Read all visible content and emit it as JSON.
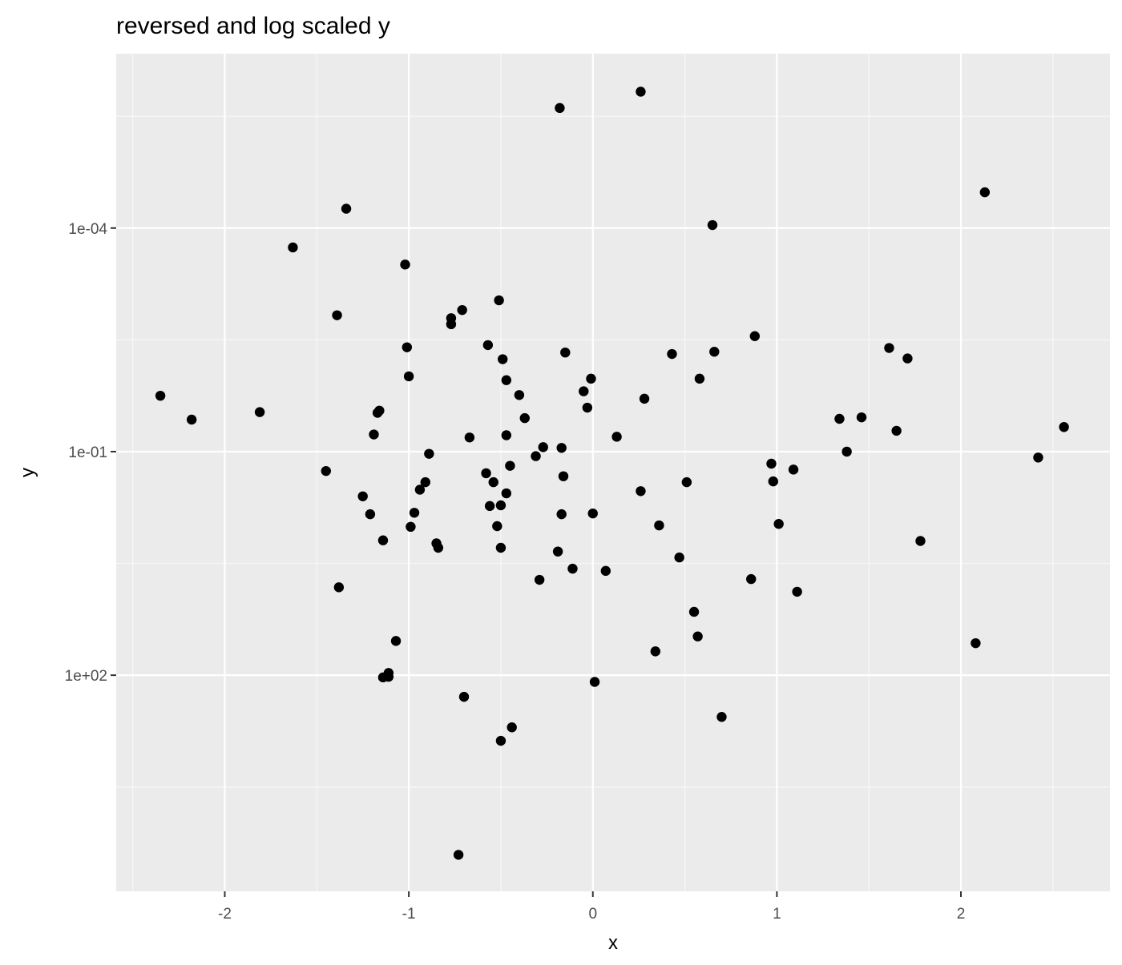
{
  "chart_data": {
    "type": "scatter",
    "title": "reversed and log scaled y",
    "xlabel": "x",
    "ylabel": "y",
    "xlim": [
      -2.59,
      2.81
    ],
    "ylim_log10": [
      -6.34,
      4.9
    ],
    "y_scale": "log10",
    "y_reversed": true,
    "grid": true,
    "background": "#EBEBEB",
    "point_color": "#000000",
    "x_ticks": [
      {
        "value": -2,
        "label": "-2"
      },
      {
        "value": -1,
        "label": "-1"
      },
      {
        "value": 0,
        "label": "0"
      },
      {
        "value": 1,
        "label": "1"
      },
      {
        "value": 2,
        "label": "2"
      }
    ],
    "y_ticks": [
      {
        "value": 0.0001,
        "label": "1e-04"
      },
      {
        "value": 0.1,
        "label": "1e-01"
      },
      {
        "value": 100,
        "label": "1e+02"
      }
    ],
    "points": [
      [
        -0.18,
        2.45e-06
      ],
      [
        0.26,
        1.48e-06
      ],
      [
        2.13,
        3.31e-05
      ],
      [
        -1.34,
        5.5e-05
      ],
      [
        0.65,
        9.12e-05
      ],
      [
        -1.63,
        0.000182
      ],
      [
        -1.02,
        0.000309
      ],
      [
        -0.51,
        0.000933
      ],
      [
        -0.71,
        0.00126
      ],
      [
        -1.39,
        0.00148
      ],
      [
        -0.77,
        0.00162
      ],
      [
        -0.77,
        0.00195
      ],
      [
        0.88,
        0.00282
      ],
      [
        -0.57,
        0.00372
      ],
      [
        -1.01,
        0.00398
      ],
      [
        1.61,
        0.00407
      ],
      [
        -0.15,
        0.00468
      ],
      [
        0.66,
        0.00457
      ],
      [
        0.43,
        0.0049
      ],
      [
        -0.49,
        0.00575
      ],
      [
        1.71,
        0.00562
      ],
      [
        -1.0,
        0.00977
      ],
      [
        -0.01,
        0.0105
      ],
      [
        0.58,
        0.0105
      ],
      [
        -0.47,
        0.011
      ],
      [
        -0.05,
        0.0155
      ],
      [
        -2.35,
        0.0178
      ],
      [
        -0.4,
        0.0174
      ],
      [
        0.28,
        0.0195
      ],
      [
        -0.03,
        0.0257
      ],
      [
        -1.81,
        0.0295
      ],
      [
        -1.16,
        0.0282
      ],
      [
        -1.17,
        0.0302
      ],
      [
        -2.18,
        0.0372
      ],
      [
        1.34,
        0.0363
      ],
      [
        1.46,
        0.0347
      ],
      [
        -0.37,
        0.0355
      ],
      [
        1.65,
        0.0525
      ],
      [
        2.56,
        0.0468
      ],
      [
        -1.19,
        0.0589
      ],
      [
        -0.47,
        0.0603
      ],
      [
        0.13,
        0.0631
      ],
      [
        -0.67,
        0.0646
      ],
      [
        -0.27,
        0.0871
      ],
      [
        -0.17,
        0.0891
      ],
      [
        1.38,
        0.1
      ],
      [
        -0.89,
        0.107
      ],
      [
        -0.31,
        0.115
      ],
      [
        2.42,
        0.12
      ],
      [
        0.97,
        0.145
      ],
      [
        -0.45,
        0.155
      ],
      [
        -1.45,
        0.182
      ],
      [
        1.09,
        0.174
      ],
      [
        -0.58,
        0.195
      ],
      [
        -0.16,
        0.214
      ],
      [
        -0.54,
        0.257
      ],
      [
        -0.91,
        0.257
      ],
      [
        0.98,
        0.251
      ],
      [
        0.51,
        0.257
      ],
      [
        -0.94,
        0.324
      ],
      [
        0.26,
        0.339
      ],
      [
        -0.47,
        0.363
      ],
      [
        -1.25,
        0.398
      ],
      [
        -0.56,
        0.537
      ],
      [
        -0.5,
        0.525
      ],
      [
        -0.97,
        0.661
      ],
      [
        -1.21,
        0.692
      ],
      [
        -0.17,
        0.692
      ],
      [
        0.0,
        0.676
      ],
      [
        1.01,
        0.933
      ],
      [
        -0.52,
        1.0
      ],
      [
        0.36,
        0.977
      ],
      [
        -0.99,
        1.02
      ],
      [
        -1.14,
        1.55
      ],
      [
        -0.85,
        1.7
      ],
      [
        1.78,
        1.58
      ],
      [
        -0.84,
        1.95
      ],
      [
        -0.5,
        1.95
      ],
      [
        -0.19,
        2.19
      ],
      [
        0.47,
        2.63
      ],
      [
        -0.11,
        3.72
      ],
      [
        0.07,
        3.98
      ],
      [
        -0.29,
        5.25
      ],
      [
        0.86,
        5.13
      ],
      [
        -1.38,
        6.61
      ],
      [
        1.11,
        7.59
      ],
      [
        0.55,
        14.1
      ],
      [
        0.57,
        30.2
      ],
      [
        -1.07,
        34.7
      ],
      [
        2.08,
        37.2
      ],
      [
        0.34,
        47.9
      ],
      [
        -1.11,
        93.3
      ],
      [
        -1.11,
        105
      ],
      [
        -1.14,
        107
      ],
      [
        0.01,
        123
      ],
      [
        -0.7,
        195
      ],
      [
        0.7,
        363
      ],
      [
        -0.44,
        501
      ],
      [
        -0.5,
        759
      ],
      [
        -0.73,
        25700
      ]
    ]
  }
}
